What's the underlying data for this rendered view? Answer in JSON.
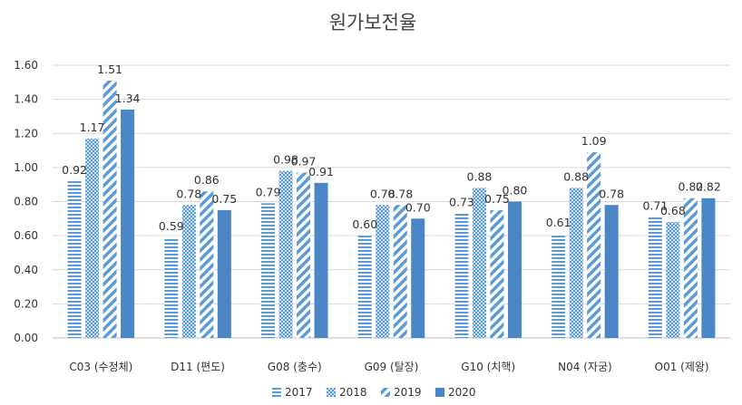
{
  "chart_data": {
    "type": "bar",
    "title": "원가보전율",
    "xlabel": "",
    "ylabel": "",
    "ylim": [
      0,
      1.6
    ],
    "yticks": [
      "0.00",
      "0.20",
      "0.40",
      "0.60",
      "0.80",
      "1.00",
      "1.20",
      "1.40",
      "1.60"
    ],
    "categories": [
      "C03 (수정체)",
      "D11 (편도)",
      "G08 (충수)",
      "G09 (탈장)",
      "G10 (치핵)",
      "N04 (자궁)",
      "O01 (제왕)"
    ],
    "series": [
      {
        "name": "2017",
        "values": [
          0.92,
          0.59,
          0.79,
          0.6,
          0.73,
          0.61,
          0.71
        ],
        "labels": [
          "0.92",
          "0.59",
          "0.79",
          "0.60",
          "0.73",
          "0.61",
          "0.71"
        ],
        "pattern": "horizontal-lines"
      },
      {
        "name": "2018",
        "values": [
          1.17,
          0.78,
          0.98,
          0.78,
          0.88,
          0.88,
          0.68
        ],
        "labels": [
          "1.17",
          "0.78",
          "0.98",
          "0.78",
          "0.88",
          "0.88",
          "0.68"
        ],
        "pattern": "dots"
      },
      {
        "name": "2019",
        "values": [
          1.51,
          0.86,
          0.97,
          0.78,
          0.75,
          1.09,
          0.82
        ],
        "labels": [
          "1.51",
          "0.86",
          "0.97",
          "0.78",
          "0.75",
          "1.09",
          "0.82"
        ],
        "pattern": "diagonal-stripes"
      },
      {
        "name": "2020",
        "values": [
          1.34,
          0.75,
          0.91,
          0.7,
          0.8,
          0.78,
          0.82
        ],
        "labels": [
          "1.34",
          "0.75",
          "0.91",
          "0.70",
          "0.80",
          "0.78",
          "0.82"
        ],
        "pattern": "solid"
      }
    ],
    "colors": {
      "bar": "#5b9bd5",
      "bar_dark": "#4a86c5",
      "grid": "#d9d9d9",
      "axis": "#bfbfbf"
    },
    "grid": true,
    "legend_position": "bottom"
  }
}
